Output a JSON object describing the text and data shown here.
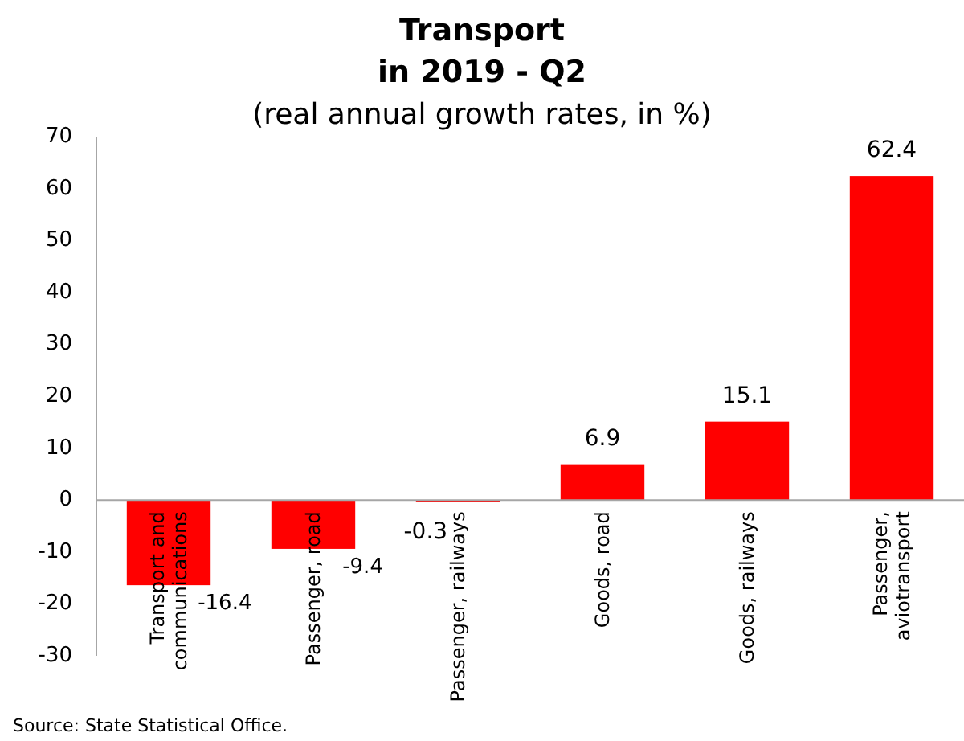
{
  "chart_data": {
    "type": "bar",
    "title": "Transport\nin 2019 - Q2",
    "subtitle": "(real annual growth rates, in %)",
    "categories": [
      "Transport and communications",
      "Passenger, road",
      "Passenger, railways",
      "Goods, road",
      "Goods, railways",
      "Passenger, aviotransport"
    ],
    "values": [
      -16.4,
      -9.4,
      -0.3,
      6.9,
      15.1,
      62.4
    ],
    "color": "#ff0000",
    "data_labels": true,
    "ylim": [
      -30,
      70
    ],
    "yticks": [
      -30,
      -20,
      -10,
      0,
      10,
      20,
      30,
      40,
      50,
      60,
      70
    ],
    "annotations": [
      "Source: State Statistical Office."
    ]
  }
}
